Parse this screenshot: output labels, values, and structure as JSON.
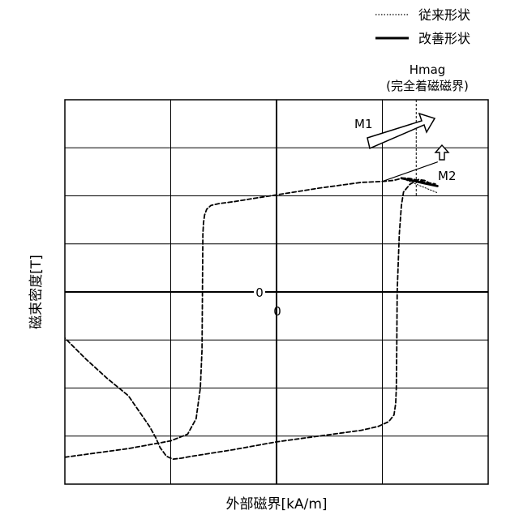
{
  "chart_data": {
    "type": "line",
    "xlabel": "外部磁界[kA/m]",
    "ylabel": "磁束密度[T]",
    "origin_x_label": "0",
    "origin_y_label": "0",
    "xlim": [
      -1,
      1
    ],
    "ylim": [
      -1,
      1
    ],
    "grid": true,
    "legend_position": "top-right",
    "legend": [
      {
        "label": "従来形状",
        "style": "dotted"
      },
      {
        "label": "改善形状",
        "style": "solid"
      }
    ],
    "annotations": {
      "hmag_line1": "Hmag",
      "hmag_line2": "(完全着磁磁界)",
      "m1": "M1",
      "m2": "M2"
    },
    "series": [
      {
        "name": "ヒステリシスループ",
        "style": "dashed",
        "x": [
          -1.0,
          -0.7,
          -0.5,
          -0.42,
          -0.38,
          -0.36,
          -0.352,
          -0.35,
          -0.348,
          -0.345,
          -0.34,
          -0.33,
          -0.31,
          -0.27,
          -0.2,
          -0.1,
          0.0,
          0.2,
          0.4,
          0.5,
          0.55,
          0.57,
          0.58,
          0.59,
          0.595,
          0.61,
          0.63,
          0.66,
          0.7,
          0.74,
          0.75,
          0.72,
          0.7,
          0.67,
          0.63,
          0.6,
          0.59,
          0.58,
          0.575,
          0.57,
          0.568,
          0.566,
          0.563,
          0.555,
          0.53,
          0.48,
          0.4,
          0.3,
          0.2,
          0.1,
          0.0,
          -0.2,
          -0.4,
          -0.45,
          -0.49,
          -0.52,
          -0.55,
          -0.57,
          -0.6,
          -0.7,
          -0.8,
          -0.9,
          -1.0
        ],
        "y": [
          -0.86,
          -0.815,
          -0.775,
          -0.74,
          -0.66,
          -0.5,
          -0.3,
          0.0,
          0.3,
          0.36,
          0.4,
          0.43,
          0.45,
          0.46,
          0.47,
          0.488,
          0.505,
          0.54,
          0.57,
          0.575,
          0.58,
          0.585,
          0.588,
          0.59,
          0.592,
          0.592,
          0.59,
          0.583,
          0.571,
          0.563,
          0.562,
          0.568,
          0.58,
          0.585,
          0.56,
          0.52,
          0.45,
          0.3,
          0.15,
          0.0,
          -0.3,
          -0.5,
          -0.58,
          -0.64,
          -0.675,
          -0.7,
          -0.72,
          -0.735,
          -0.75,
          -0.765,
          -0.78,
          -0.82,
          -0.855,
          -0.865,
          -0.87,
          -0.855,
          -0.81,
          -0.76,
          -0.7,
          -0.54,
          -0.45,
          -0.35,
          -0.24
        ]
      },
      {
        "name": "従来形状",
        "style": "dotted",
        "x": [
          0.59,
          0.76
        ],
        "y": [
          0.592,
          0.516
        ]
      },
      {
        "name": "改善形状",
        "style": "solid",
        "x": [
          0.59,
          0.7,
          0.76
        ],
        "y": [
          0.592,
          0.565,
          0.551
        ]
      },
      {
        "name": "",
        "style": "solid-thin",
        "x": [
          0.5,
          0.76
        ],
        "y": [
          0.575,
          0.676
        ]
      }
    ],
    "hmag_x": 0.66
  }
}
